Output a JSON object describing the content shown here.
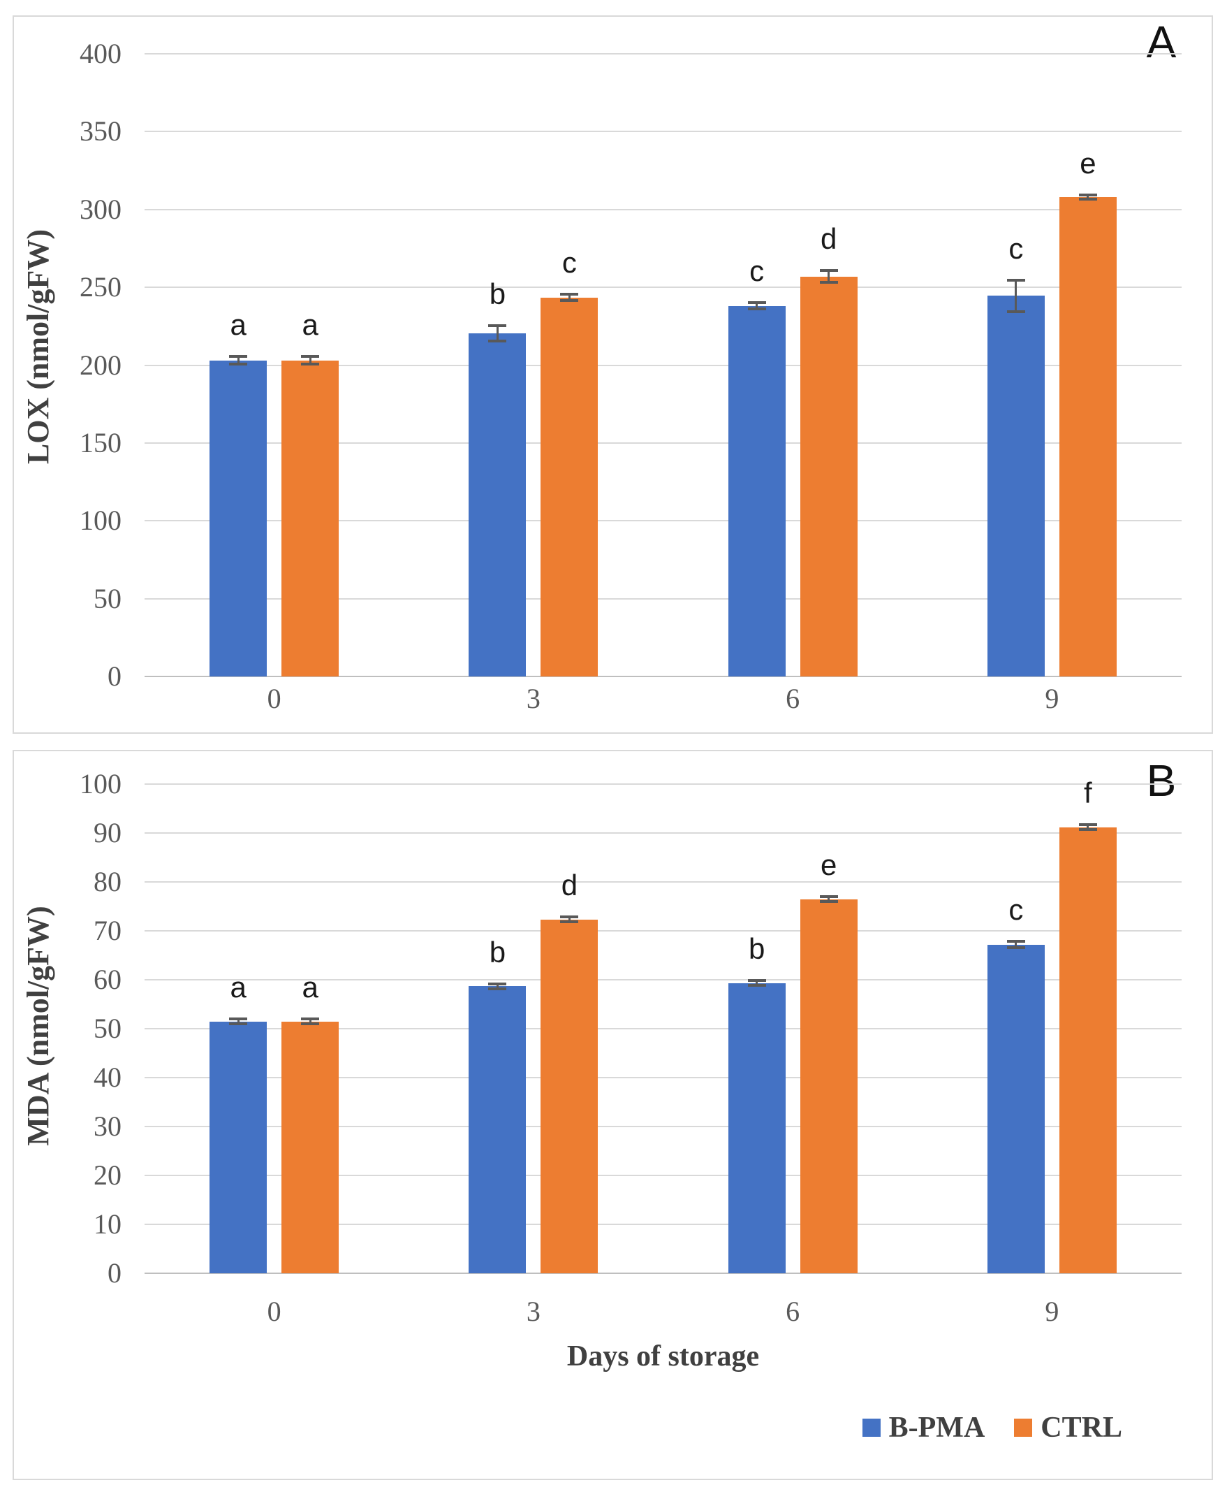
{
  "figure": {
    "panel_a_label": "A",
    "panel_b_label": "B",
    "x_axis_title": "Days of storage"
  },
  "legend": {
    "position": "bottom-right",
    "items": [
      {
        "label": "B-PMA",
        "color": "#4472C4"
      },
      {
        "label": "CTRL",
        "color": "#ED7D31"
      }
    ]
  },
  "colors": {
    "bpma_blue": "#4472C4",
    "ctrl_orange": "#ED7D31",
    "gridline": "#D9D9D9",
    "axis_line": "#BFBFBF",
    "tick_text": "#595959",
    "axis_title_text": "#404040",
    "error_bar": "#595959"
  },
  "chart_data": [
    {
      "type": "bar",
      "panel_label": "A",
      "title": "",
      "xlabel": "",
      "ylabel": "LOX (nmol/gFW)",
      "categories": [
        "0",
        "3",
        "6",
        "9"
      ],
      "ylim": [
        0,
        400
      ],
      "ytick_step": 50,
      "yticks": [
        0,
        50,
        100,
        150,
        200,
        250,
        300,
        350,
        400
      ],
      "grid": true,
      "series": [
        {
          "name": "B-PMA",
          "color": "#4472C4",
          "values": [
            203,
            220.5,
            238,
            244.5
          ],
          "errors": [
            2.5,
            5,
            2,
            10
          ],
          "sig_letters": [
            "a",
            "b",
            "c",
            "c"
          ]
        },
        {
          "name": "CTRL",
          "color": "#ED7D31",
          "values": [
            203,
            243.5,
            257,
            308
          ],
          "errors": [
            2.5,
            2,
            4,
            1.5
          ],
          "sig_letters": [
            "a",
            "c",
            "d",
            "e"
          ]
        }
      ]
    },
    {
      "type": "bar",
      "panel_label": "B",
      "title": "",
      "xlabel": "Days of storage",
      "ylabel": "MDA (nmol/gFW)",
      "categories": [
        "0",
        "3",
        "6",
        "9"
      ],
      "ylim": [
        0,
        100
      ],
      "ytick_step": 10,
      "yticks": [
        0,
        10,
        20,
        30,
        40,
        50,
        60,
        70,
        80,
        90,
        100
      ],
      "grid": true,
      "legend_position": "bottom-right",
      "series": [
        {
          "name": "B-PMA",
          "color": "#4472C4",
          "values": [
            51.5,
            58.7,
            59.3,
            67.2
          ],
          "errors": [
            0.5,
            0.5,
            0.5,
            0.6
          ],
          "sig_letters": [
            "a",
            "b",
            "b",
            "c"
          ]
        },
        {
          "name": "CTRL",
          "color": "#ED7D31",
          "values": [
            51.5,
            72.3,
            76.5,
            91.2
          ],
          "errors": [
            0.5,
            0.5,
            0.5,
            0.5
          ],
          "sig_letters": [
            "a",
            "d",
            "e",
            "f"
          ]
        }
      ]
    }
  ]
}
